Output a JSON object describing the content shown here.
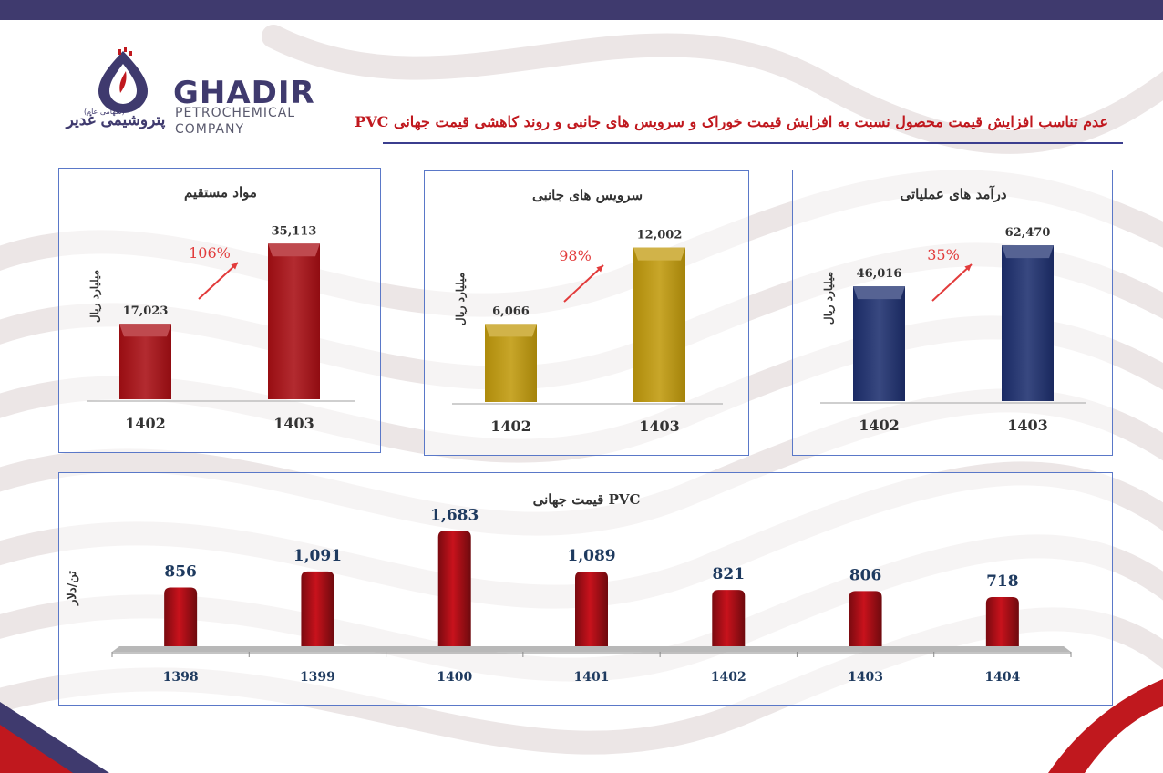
{
  "header": {
    "title": "عدم تناسب افزایش قیمت محصول  نسبت به افزایش قیمت خوراک و سرویس های جانبی و روند کاهشی قیمت جهانی PVC",
    "accent_color": "#c0181e",
    "band_color": "#3f3a6e"
  },
  "logo": {
    "name": "GHADIR",
    "line2": "PETROCHEMICAL",
    "line3": "COMPANY",
    "fa_name": "پتروشیمی غدیر",
    "fa_note": "(سهامی عام)",
    "icon": "flame-drop-icon"
  },
  "chart_data": [
    {
      "id": "direct",
      "type": "bar",
      "title": "مواد مستقیم",
      "ylabel": "میلیارد ریال",
      "categories": [
        "1402",
        "1403"
      ],
      "values": [
        17023,
        35113
      ],
      "value_labels": [
        "17,023",
        "35,113"
      ],
      "growth_label": "106%",
      "color": "#a90e14",
      "ylim": [
        0,
        36000
      ]
    },
    {
      "id": "side",
      "type": "bar",
      "title": "سرویس های جانبی",
      "ylabel": "میلیارد ریال",
      "categories": [
        "1402",
        "1403"
      ],
      "values": [
        6066,
        12002
      ],
      "value_labels": [
        "6,066",
        "12,002"
      ],
      "growth_label": "98%",
      "color": "#c19a0c",
      "ylim": [
        0,
        12400
      ]
    },
    {
      "id": "rev",
      "type": "bar",
      "title": "درآمد های عملیاتی",
      "ylabel": "میلیارد ریال",
      "categories": [
        "1402",
        "1403"
      ],
      "values": [
        46016,
        62470
      ],
      "value_labels": [
        "46,016",
        "62,470"
      ],
      "growth_label": "35%",
      "color": "#1d2f6f",
      "ylim": [
        0,
        64000
      ]
    },
    {
      "id": "pvc",
      "type": "bar",
      "title": "قیمت جهانی PVC",
      "ylabel": "تن/دلار",
      "categories": [
        "1398",
        "1399",
        "1400",
        "1401",
        "1402",
        "1403",
        "1404"
      ],
      "values": [
        856,
        1091,
        1683,
        1089,
        821,
        806,
        718
      ],
      "value_labels": [
        "856",
        "1,091",
        "1,683",
        "1,089",
        "821",
        "806",
        "718"
      ],
      "color": "#c8121c",
      "ylim": [
        0,
        1700
      ]
    }
  ]
}
